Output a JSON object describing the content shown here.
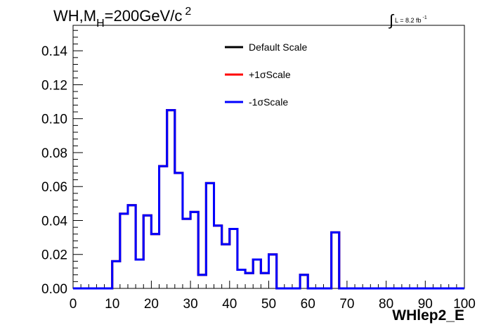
{
  "chart_data": {
    "type": "line",
    "title_parts": {
      "prefix": "WH,M",
      "subscript": "H",
      "middle": "=200GeV/c",
      "superscript": "2"
    },
    "lumi_parts": {
      "integral": "∫",
      "text": "L = 8.2 fb",
      "superscript": "-1"
    },
    "xlabel": "WHlep2_E",
    "ylabel": "",
    "xlim": [
      0,
      100
    ],
    "ylim": [
      0,
      0.155
    ],
    "x_ticks": [
      "0",
      "10",
      "20",
      "30",
      "40",
      "50",
      "60",
      "70",
      "80",
      "90",
      "100"
    ],
    "y_ticks": [
      "0.00",
      "0.02",
      "0.04",
      "0.06",
      "0.08",
      "0.10",
      "0.12",
      "0.14"
    ],
    "bin_edges": [
      0,
      2,
      4,
      6,
      8,
      10,
      12,
      14,
      16,
      18,
      20,
      22,
      24,
      26,
      28,
      30,
      32,
      34,
      36,
      38,
      40,
      42,
      44,
      46,
      48,
      50,
      52,
      54,
      56,
      58,
      60,
      62,
      64,
      66,
      68,
      70,
      72,
      74,
      76,
      78,
      80,
      82,
      84,
      86,
      88,
      90,
      92,
      94,
      96,
      98,
      100
    ],
    "series": [
      {
        "name": "Default Scale",
        "color": "#000000",
        "values": [
          0,
          0,
          0,
          0,
          0,
          0.016,
          0.044,
          0.049,
          0.017,
          0.043,
          0.032,
          0.072,
          0.105,
          0.068,
          0.041,
          0.045,
          0.008,
          0.062,
          0.037,
          0.026,
          0.035,
          0.011,
          0.009,
          0.017,
          0.009,
          0.02,
          0,
          0,
          0,
          0.008,
          0,
          0,
          0,
          0.033,
          0,
          0,
          0,
          0,
          0,
          0,
          0,
          0,
          0,
          0,
          0,
          0,
          0,
          0,
          0,
          0
        ]
      },
      {
        "name": "+1σScale",
        "color": "#ff0000",
        "values": [
          0,
          0,
          0,
          0,
          0,
          0.016,
          0.044,
          0.049,
          0.017,
          0.043,
          0.032,
          0.072,
          0.105,
          0.068,
          0.041,
          0.045,
          0.008,
          0.062,
          0.037,
          0.026,
          0.035,
          0.011,
          0.009,
          0.017,
          0.009,
          0.02,
          0,
          0,
          0,
          0.008,
          0,
          0,
          0,
          0.033,
          0,
          0,
          0,
          0,
          0,
          0,
          0,
          0,
          0,
          0,
          0,
          0,
          0,
          0,
          0,
          0
        ]
      },
      {
        "name": "-1σScale",
        "color": "#0000ff",
        "values": [
          0,
          0,
          0,
          0,
          0,
          0.016,
          0.044,
          0.049,
          0.017,
          0.043,
          0.032,
          0.072,
          0.105,
          0.068,
          0.041,
          0.045,
          0.008,
          0.062,
          0.037,
          0.026,
          0.035,
          0.011,
          0.009,
          0.017,
          0.009,
          0.02,
          0,
          0,
          0,
          0.008,
          0,
          0,
          0,
          0.033,
          0,
          0,
          0,
          0,
          0,
          0,
          0,
          0,
          0,
          0,
          0,
          0,
          0,
          0,
          0,
          0
        ]
      }
    ],
    "legend_position": "top-center",
    "grid": false
  }
}
